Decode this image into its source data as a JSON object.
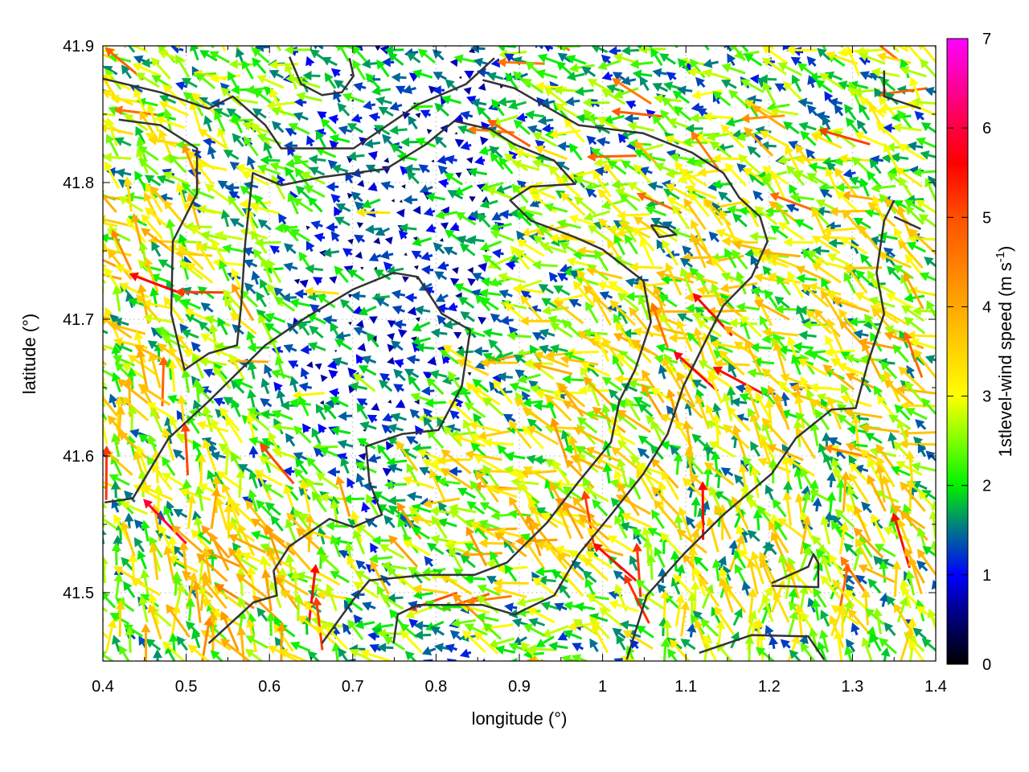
{
  "chart_data": {
    "type": "vector-field",
    "xlabel": "longitude (°)",
    "ylabel": "latitude (°)",
    "xlim": [
      0.4,
      1.4
    ],
    "ylim": [
      41.45,
      41.9
    ],
    "x_ticks": [
      "0.4",
      "0.5",
      "0.6",
      "0.7",
      "0.8",
      "0.9",
      "1",
      "1.1",
      "1.2",
      "1.3",
      "1.4"
    ],
    "x_tick_values": [
      0.4,
      0.5,
      0.6,
      0.7,
      0.8,
      0.9,
      1.0,
      1.1,
      1.2,
      1.3,
      1.4
    ],
    "y_ticks": [
      "41.5",
      "41.6",
      "41.7",
      "41.8",
      "41.9"
    ],
    "y_tick_values": [
      41.5,
      41.6,
      41.7,
      41.8,
      41.9
    ],
    "grid": true,
    "colorbar": {
      "label_main": "1stlevel-wind speed (m s",
      "label_sup": "-1",
      "label_end": ")",
      "range": [
        0,
        7
      ],
      "ticks": [
        "0",
        "1",
        "2",
        "3",
        "4",
        "5",
        "6",
        "7"
      ],
      "tick_values": [
        0,
        1,
        2,
        3,
        4,
        5,
        6,
        7
      ],
      "colormap": [
        {
          "v": 0,
          "c": "#000000"
        },
        {
          "v": 0.6,
          "c": "#00008c"
        },
        {
          "v": 1.0,
          "c": "#0000ff"
        },
        {
          "v": 1.5,
          "c": "#00748c"
        },
        {
          "v": 2.0,
          "c": "#00f000"
        },
        {
          "v": 2.5,
          "c": "#80ff00"
        },
        {
          "v": 3.0,
          "c": "#ffff00"
        },
        {
          "v": 4.0,
          "c": "#ffa800"
        },
        {
          "v": 5.0,
          "c": "#ff5000"
        },
        {
          "v": 5.6,
          "c": "#ff0000"
        },
        {
          "v": 6.0,
          "c": "#ff0040"
        },
        {
          "v": 7.0,
          "c": "#ff00ff"
        }
      ]
    },
    "wind_field": {
      "lon": [
        0.45,
        0.55,
        0.65,
        0.75,
        0.85,
        0.95,
        1.05,
        1.15,
        1.25,
        1.35
      ],
      "lat": [
        41.875,
        41.825,
        41.775,
        41.725,
        41.675,
        41.625,
        41.575,
        41.525,
        41.475
      ],
      "speed": [
        [
          2.6,
          2.5,
          2.2,
          1.6,
          1.8,
          2.4,
          2.2,
          2.3,
          2.4,
          2.6
        ],
        [
          2.8,
          2.6,
          2.2,
          1.5,
          1.8,
          2.6,
          2.2,
          2.4,
          2.6,
          2.6
        ],
        [
          3.2,
          2.7,
          2.0,
          1.4,
          1.8,
          2.8,
          2.8,
          2.8,
          3.0,
          2.8
        ],
        [
          3.4,
          2.7,
          1.8,
          1.4,
          1.6,
          2.6,
          3.0,
          3.0,
          3.0,
          3.2
        ],
        [
          3.2,
          2.6,
          1.8,
          1.3,
          1.8,
          3.0,
          3.2,
          3.0,
          3.0,
          3.2
        ],
        [
          3.0,
          2.4,
          1.9,
          1.5,
          2.6,
          3.2,
          3.2,
          3.0,
          3.0,
          3.0
        ],
        [
          2.8,
          2.6,
          2.4,
          1.7,
          3.2,
          3.4,
          3.2,
          2.8,
          2.9,
          3.0
        ],
        [
          2.8,
          3.6,
          3.2,
          2.2,
          3.4,
          3.2,
          2.8,
          3.0,
          3.0,
          3.2
        ],
        [
          2.8,
          3.6,
          3.0,
          2.4,
          2.4,
          2.4,
          2.6,
          2.8,
          2.6,
          2.8
        ]
      ],
      "direction_deg": [
        [
          145,
          150,
          150,
          160,
          160,
          165,
          160,
          155,
          150,
          150
        ],
        [
          140,
          145,
          150,
          165,
          165,
          165,
          160,
          160,
          155,
          150
        ],
        [
          135,
          140,
          150,
          170,
          170,
          165,
          160,
          155,
          150,
          150
        ],
        [
          135,
          140,
          150,
          170,
          170,
          160,
          150,
          150,
          150,
          150
        ],
        [
          130,
          135,
          150,
          170,
          165,
          155,
          145,
          140,
          145,
          150
        ],
        [
          125,
          130,
          145,
          165,
          155,
          150,
          140,
          130,
          135,
          145
        ],
        [
          120,
          125,
          135,
          155,
          150,
          145,
          130,
          110,
          115,
          130
        ],
        [
          115,
          120,
          125,
          150,
          150,
          145,
          120,
          100,
          105,
          120
        ],
        [
          110,
          115,
          120,
          165,
          175,
          170,
          130,
          100,
          105,
          110
        ]
      ]
    },
    "contours": [
      [
        [
          0.4,
          41.876
        ],
        [
          0.469,
          41.866
        ],
        [
          0.527,
          41.854
        ],
        [
          0.556,
          41.863
        ],
        [
          0.595,
          41.842
        ],
        [
          0.614,
          41.825
        ],
        [
          0.701,
          41.825
        ],
        [
          0.778,
          41.857
        ],
        [
          0.836,
          41.872
        ],
        [
          0.87,
          41.891
        ]
      ],
      [
        [
          0.419,
          41.846
        ],
        [
          0.469,
          41.842
        ],
        [
          0.513,
          41.825
        ],
        [
          0.513,
          41.792
        ],
        [
          0.484,
          41.757
        ],
        [
          0.482,
          41.704
        ],
        [
          0.498,
          41.663
        ],
        [
          0.527,
          41.675
        ],
        [
          0.561,
          41.681
        ],
        [
          0.566,
          41.71
        ],
        [
          0.571,
          41.757
        ],
        [
          0.58,
          41.807
        ],
        [
          0.614,
          41.798
        ],
        [
          0.663,
          41.804
        ],
        [
          0.74,
          41.81
        ],
        [
          0.788,
          41.828
        ],
        [
          0.822,
          41.845
        ],
        [
          0.865,
          41.839
        ],
        [
          0.894,
          41.828
        ],
        [
          0.942,
          41.816
        ],
        [
          0.967,
          41.799
        ],
        [
          0.914,
          41.797
        ],
        [
          0.889,
          41.787
        ],
        [
          0.914,
          41.772
        ],
        [
          0.967,
          41.76
        ],
        [
          1.0,
          41.751
        ],
        [
          1.049,
          41.728
        ],
        [
          1.058,
          41.698
        ],
        [
          1.039,
          41.663
        ],
        [
          1.02,
          41.64
        ],
        [
          1.01,
          41.61
        ],
        [
          0.971,
          41.581
        ],
        [
          0.933,
          41.551
        ],
        [
          0.885,
          41.522
        ],
        [
          0.846,
          41.513
        ],
        [
          0.788,
          41.513
        ],
        [
          0.72,
          41.509
        ],
        [
          0.701,
          41.495
        ],
        [
          0.663,
          41.463
        ]
      ],
      [
        [
          0.402,
          41.566
        ],
        [
          0.436,
          41.569
        ],
        [
          0.479,
          41.613
        ],
        [
          0.527,
          41.64
        ],
        [
          0.595,
          41.681
        ],
        [
          0.643,
          41.701
        ],
        [
          0.701,
          41.722
        ],
        [
          0.749,
          41.734
        ],
        [
          0.778,
          41.731
        ],
        [
          0.807,
          41.704
        ],
        [
          0.841,
          41.692
        ],
        [
          0.831,
          41.651
        ],
        [
          0.803,
          41.619
        ],
        [
          0.759,
          41.616
        ],
        [
          0.716,
          41.607
        ],
        [
          0.72,
          41.581
        ],
        [
          0.735,
          41.557
        ],
        [
          0.701,
          41.548
        ],
        [
          0.672,
          41.554
        ],
        [
          0.624,
          41.534
        ],
        [
          0.605,
          41.516
        ],
        [
          0.609,
          41.498
        ],
        [
          0.581,
          41.493
        ],
        [
          0.527,
          41.463
        ]
      ],
      [
        [
          0.749,
          41.463
        ],
        [
          0.754,
          41.484
        ],
        [
          0.778,
          41.491
        ],
        [
          0.856,
          41.491
        ],
        [
          0.894,
          41.484
        ],
        [
          0.942,
          41.498
        ],
        [
          0.971,
          41.528
        ],
        [
          1.01,
          41.557
        ],
        [
          1.049,
          41.587
        ],
        [
          1.078,
          41.616
        ],
        [
          1.097,
          41.651
        ],
        [
          1.126,
          41.687
        ],
        [
          1.145,
          41.71
        ],
        [
          1.179,
          41.731
        ],
        [
          1.198,
          41.757
        ],
        [
          1.189,
          41.775
        ],
        [
          1.164,
          41.789
        ],
        [
          1.145,
          41.807
        ],
        [
          1.107,
          41.822
        ],
        [
          1.049,
          41.836
        ],
        [
          0.971,
          41.842
        ],
        [
          0.894,
          41.869
        ],
        [
          0.856,
          41.875
        ]
      ],
      [
        [
          1.029,
          41.451
        ],
        [
          1.053,
          41.498
        ],
        [
          1.097,
          41.528
        ],
        [
          1.145,
          41.557
        ],
        [
          1.203,
          41.587
        ],
        [
          1.232,
          41.613
        ],
        [
          1.275,
          41.634
        ],
        [
          1.304,
          41.635
        ],
        [
          1.319,
          41.669
        ],
        [
          1.338,
          41.704
        ],
        [
          1.329,
          41.734
        ],
        [
          1.338,
          41.772
        ],
        [
          1.35,
          41.787
        ]
      ],
      [
        [
          1.116,
          41.456
        ],
        [
          1.179,
          41.469
        ],
        [
          1.247,
          41.468
        ],
        [
          1.266,
          41.451
        ]
      ],
      [
        [
          1.203,
          41.507
        ],
        [
          1.247,
          41.519
        ],
        [
          1.253,
          41.528
        ],
        [
          1.259,
          41.522
        ],
        [
          1.259,
          41.504
        ],
        [
          1.203,
          41.505
        ]
      ],
      [
        [
          1.338,
          41.882
        ],
        [
          1.338,
          41.863
        ],
        [
          1.382,
          41.854
        ]
      ],
      [
        [
          1.35,
          41.775
        ],
        [
          1.382,
          41.766
        ]
      ],
      [
        [
          0.624,
          41.892
        ],
        [
          0.638,
          41.872
        ],
        [
          0.663,
          41.864
        ],
        [
          0.687,
          41.866
        ],
        [
          0.701,
          41.878
        ],
        [
          0.696,
          41.891
        ]
      ],
      [
        [
          1.058,
          41.769
        ],
        [
          1.078,
          41.767
        ],
        [
          1.088,
          41.762
        ],
        [
          1.068,
          41.76
        ],
        [
          1.058,
          41.769
        ]
      ]
    ]
  }
}
